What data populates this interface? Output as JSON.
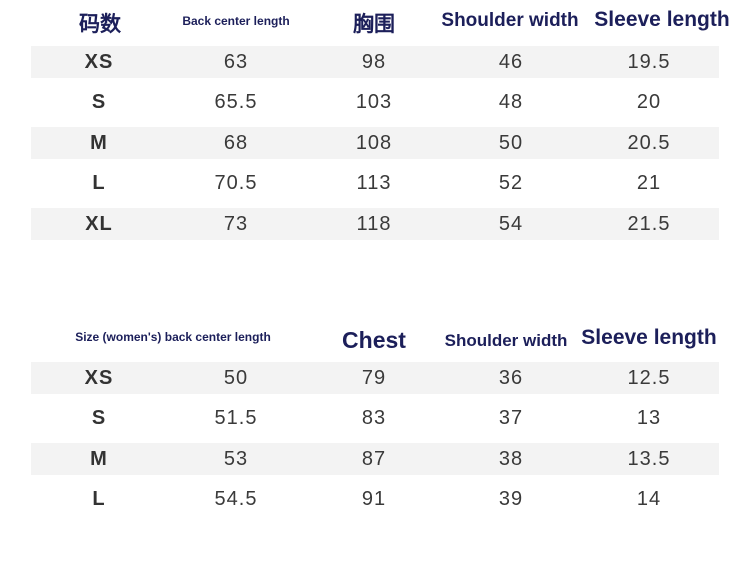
{
  "table_top": {
    "headers": {
      "size": "码数",
      "back_length": "Back center length",
      "chest": "胸围",
      "shoulder": "Shoulder width",
      "sleeve": "Sleeve length"
    },
    "rows": [
      {
        "size": "XS",
        "back_length": "63",
        "chest": "98",
        "shoulder": "46",
        "sleeve": "19.5"
      },
      {
        "size": "S",
        "back_length": "65.5",
        "chest": "103",
        "shoulder": "48",
        "sleeve": "20"
      },
      {
        "size": "M",
        "back_length": "68",
        "chest": "108",
        "shoulder": "50",
        "sleeve": "20.5"
      },
      {
        "size": "L",
        "back_length": "70.5",
        "chest": "113",
        "shoulder": "52",
        "sleeve": "21"
      },
      {
        "size": "XL",
        "back_length": "73",
        "chest": "118",
        "shoulder": "54",
        "sleeve": "21.5"
      }
    ]
  },
  "table_bottom": {
    "headers": {
      "size_back_length": "Size (women's) back center length",
      "chest": "Chest",
      "shoulder": "Shoulder width",
      "sleeve": "Sleeve length"
    },
    "rows": [
      {
        "size": "XS",
        "back_length": "50",
        "chest": "79",
        "shoulder": "36",
        "sleeve": "12.5"
      },
      {
        "size": "S",
        "back_length": "51.5",
        "chest": "83",
        "shoulder": "37",
        "sleeve": "13"
      },
      {
        "size": "M",
        "back_length": "53",
        "chest": "87",
        "shoulder": "38",
        "sleeve": "13.5"
      },
      {
        "size": "L",
        "back_length": "54.5",
        "chest": "91",
        "shoulder": "39",
        "sleeve": "14"
      }
    ]
  }
}
